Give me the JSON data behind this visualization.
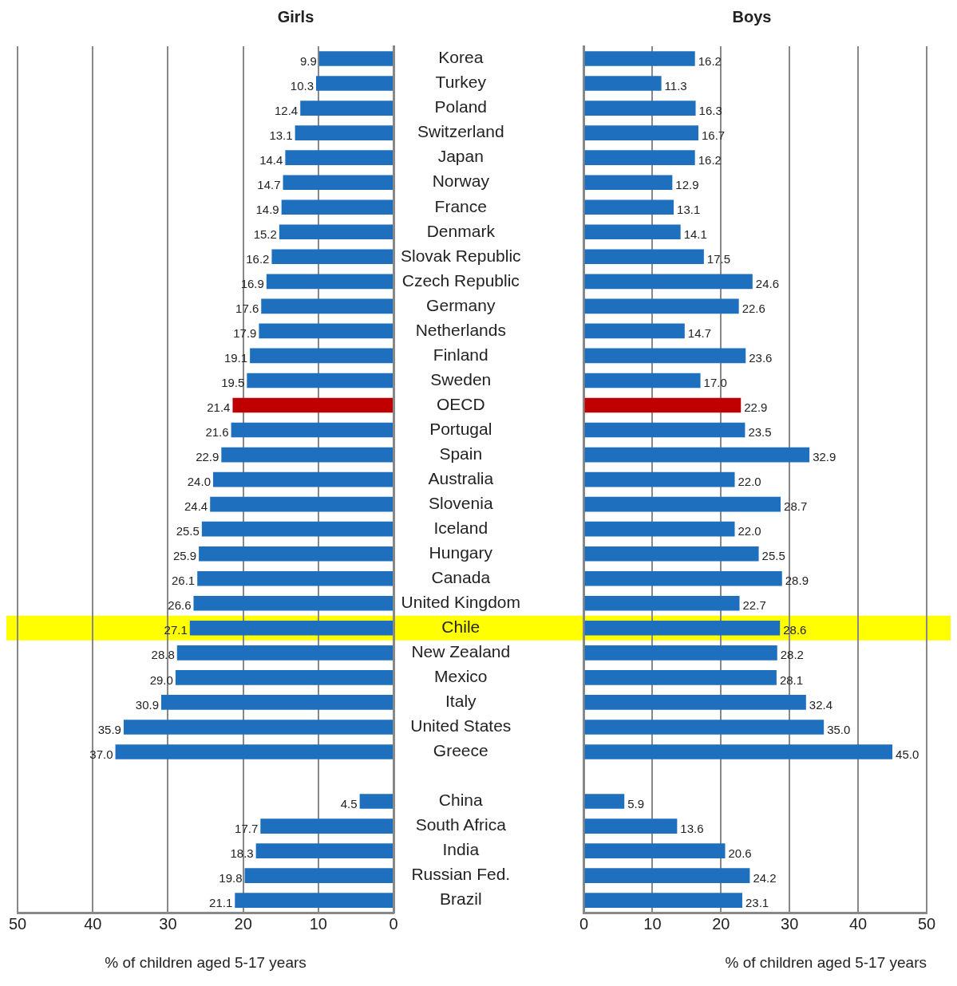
{
  "chart_data": [
    {
      "type": "bar",
      "orientation": "horizontal",
      "title": "Girls",
      "xlabel": "% of children aged 5-17 years",
      "categories": [
        "Korea",
        "Turkey",
        "Poland",
        "Switzerland",
        "Japan",
        "Norway",
        "France",
        "Denmark",
        "Slovak Republic",
        "Czech Republic",
        "Germany",
        "Netherlands",
        "Finland",
        "Sweden",
        "OECD",
        "Portugal",
        "Spain",
        "Australia",
        "Slovenia",
        "Iceland",
        "Hungary",
        "Canada",
        "United Kingdom",
        "Chile",
        "New Zealand",
        "Mexico",
        "Italy",
        "United States",
        "Greece",
        null,
        "China",
        "South Africa",
        "India",
        "Russian Fed.",
        "Brazil"
      ],
      "values": [
        9.9,
        10.3,
        12.4,
        13.1,
        14.4,
        14.7,
        14.9,
        15.2,
        16.2,
        16.9,
        17.6,
        17.9,
        19.1,
        19.5,
        21.4,
        21.6,
        22.9,
        24.0,
        24.4,
        25.5,
        25.9,
        26.1,
        26.6,
        27.1,
        28.8,
        29.0,
        30.9,
        35.9,
        37.0,
        null,
        4.5,
        17.7,
        18.3,
        19.8,
        21.1
      ],
      "value_labels": [
        "9.9",
        "10.3",
        "12.4",
        "13.1",
        "14.4",
        "14.7",
        "14.9",
        "15.2",
        "16.2",
        "16.9",
        "17.6",
        "17.9",
        "19.1",
        "19.5",
        "21.4",
        "21.6",
        "22.9",
        "24.0",
        "24.4",
        "25.5",
        "25.9",
        "26.1",
        "26.6",
        "27.1",
        "28.8",
        "29.0",
        "30.9",
        "35.9",
        "37.0",
        null,
        "4.5",
        "17.7",
        "18.3",
        "19.8",
        "21.1"
      ],
      "colors": [
        "#1f6fbf",
        "#1f6fbf",
        "#1f6fbf",
        "#1f6fbf",
        "#1f6fbf",
        "#1f6fbf",
        "#1f6fbf",
        "#1f6fbf",
        "#1f6fbf",
        "#1f6fbf",
        "#1f6fbf",
        "#1f6fbf",
        "#1f6fbf",
        "#1f6fbf",
        "#c00000",
        "#1f6fbf",
        "#1f6fbf",
        "#1f6fbf",
        "#1f6fbf",
        "#1f6fbf",
        "#1f6fbf",
        "#1f6fbf",
        "#1f6fbf",
        "#1f6fbf",
        "#1f6fbf",
        "#1f6fbf",
        "#1f6fbf",
        "#1f6fbf",
        "#1f6fbf",
        "#1f6fbf",
        "#1f6fbf",
        "#1f6fbf",
        "#1f6fbf",
        "#1f6fbf",
        "#1f6fbf"
      ],
      "xlim": [
        50,
        0
      ],
      "xticks": [
        50,
        40,
        30,
        20,
        10,
        0
      ],
      "grid": "x",
      "legend": false,
      "bands": [
        {
          "axis": "y",
          "from": "Chile",
          "to": "Chile",
          "color": "#ffff00"
        }
      ]
    },
    {
      "type": "bar",
      "orientation": "horizontal",
      "title": "Boys",
      "xlabel": "% of children aged 5-17 years",
      "categories": [
        "Korea",
        "Turkey",
        "Poland",
        "Switzerland",
        "Japan",
        "Norway",
        "France",
        "Denmark",
        "Slovak Republic",
        "Czech Republic",
        "Germany",
        "Netherlands",
        "Finland",
        "Sweden",
        "OECD",
        "Portugal",
        "Spain",
        "Australia",
        "Slovenia",
        "Iceland",
        "Hungary",
        "Canada",
        "United Kingdom",
        "Chile",
        "New Zealand",
        "Mexico",
        "Italy",
        "United States",
        "Greece",
        null,
        "China",
        "South Africa",
        "India",
        "Russian Fed.",
        "Brazil"
      ],
      "values": [
        16.2,
        11.3,
        16.3,
        16.7,
        16.2,
        12.9,
        13.1,
        14.1,
        17.5,
        24.6,
        22.6,
        14.7,
        23.6,
        17.0,
        22.9,
        23.5,
        32.9,
        22.0,
        28.7,
        22.0,
        25.5,
        28.9,
        22.7,
        28.6,
        28.2,
        28.1,
        32.4,
        35.0,
        45.0,
        null,
        5.9,
        13.6,
        20.6,
        24.2,
        23.1
      ],
      "value_labels": [
        "16.2",
        "11.3",
        "16.3",
        "16.7",
        "16.2",
        "12.9",
        "13.1",
        "14.1",
        "17.5",
        "24.6",
        "22.6",
        "14.7",
        "23.6",
        "17.0",
        "22.9",
        "23.5",
        "32.9",
        "22.0",
        "28.7",
        "22.0",
        "25.5",
        "28.9",
        "22.7",
        "28.6",
        "28.2",
        "28.1",
        "32.4",
        "35.0",
        "45.0",
        null,
        "5.9",
        "13.6",
        "20.6",
        "24.2",
        "23.1"
      ],
      "colors": [
        "#1f6fbf",
        "#1f6fbf",
        "#1f6fbf",
        "#1f6fbf",
        "#1f6fbf",
        "#1f6fbf",
        "#1f6fbf",
        "#1f6fbf",
        "#1f6fbf",
        "#1f6fbf",
        "#1f6fbf",
        "#1f6fbf",
        "#1f6fbf",
        "#1f6fbf",
        "#c00000",
        "#1f6fbf",
        "#1f6fbf",
        "#1f6fbf",
        "#1f6fbf",
        "#1f6fbf",
        "#1f6fbf",
        "#1f6fbf",
        "#1f6fbf",
        "#1f6fbf",
        "#1f6fbf",
        "#1f6fbf",
        "#1f6fbf",
        "#1f6fbf",
        "#1f6fbf",
        "#1f6fbf",
        "#1f6fbf",
        "#1f6fbf",
        "#1f6fbf",
        "#1f6fbf",
        "#1f6fbf"
      ],
      "xlim": [
        0,
        50
      ],
      "xticks": [
        0,
        10,
        20,
        30,
        40,
        50
      ],
      "grid": "x",
      "legend": false,
      "tick_labels": "x",
      "bands": [
        {
          "axis": "y",
          "from": "Chile",
          "to": "Chile",
          "color": "#ffff00"
        }
      ]
    }
  ]
}
